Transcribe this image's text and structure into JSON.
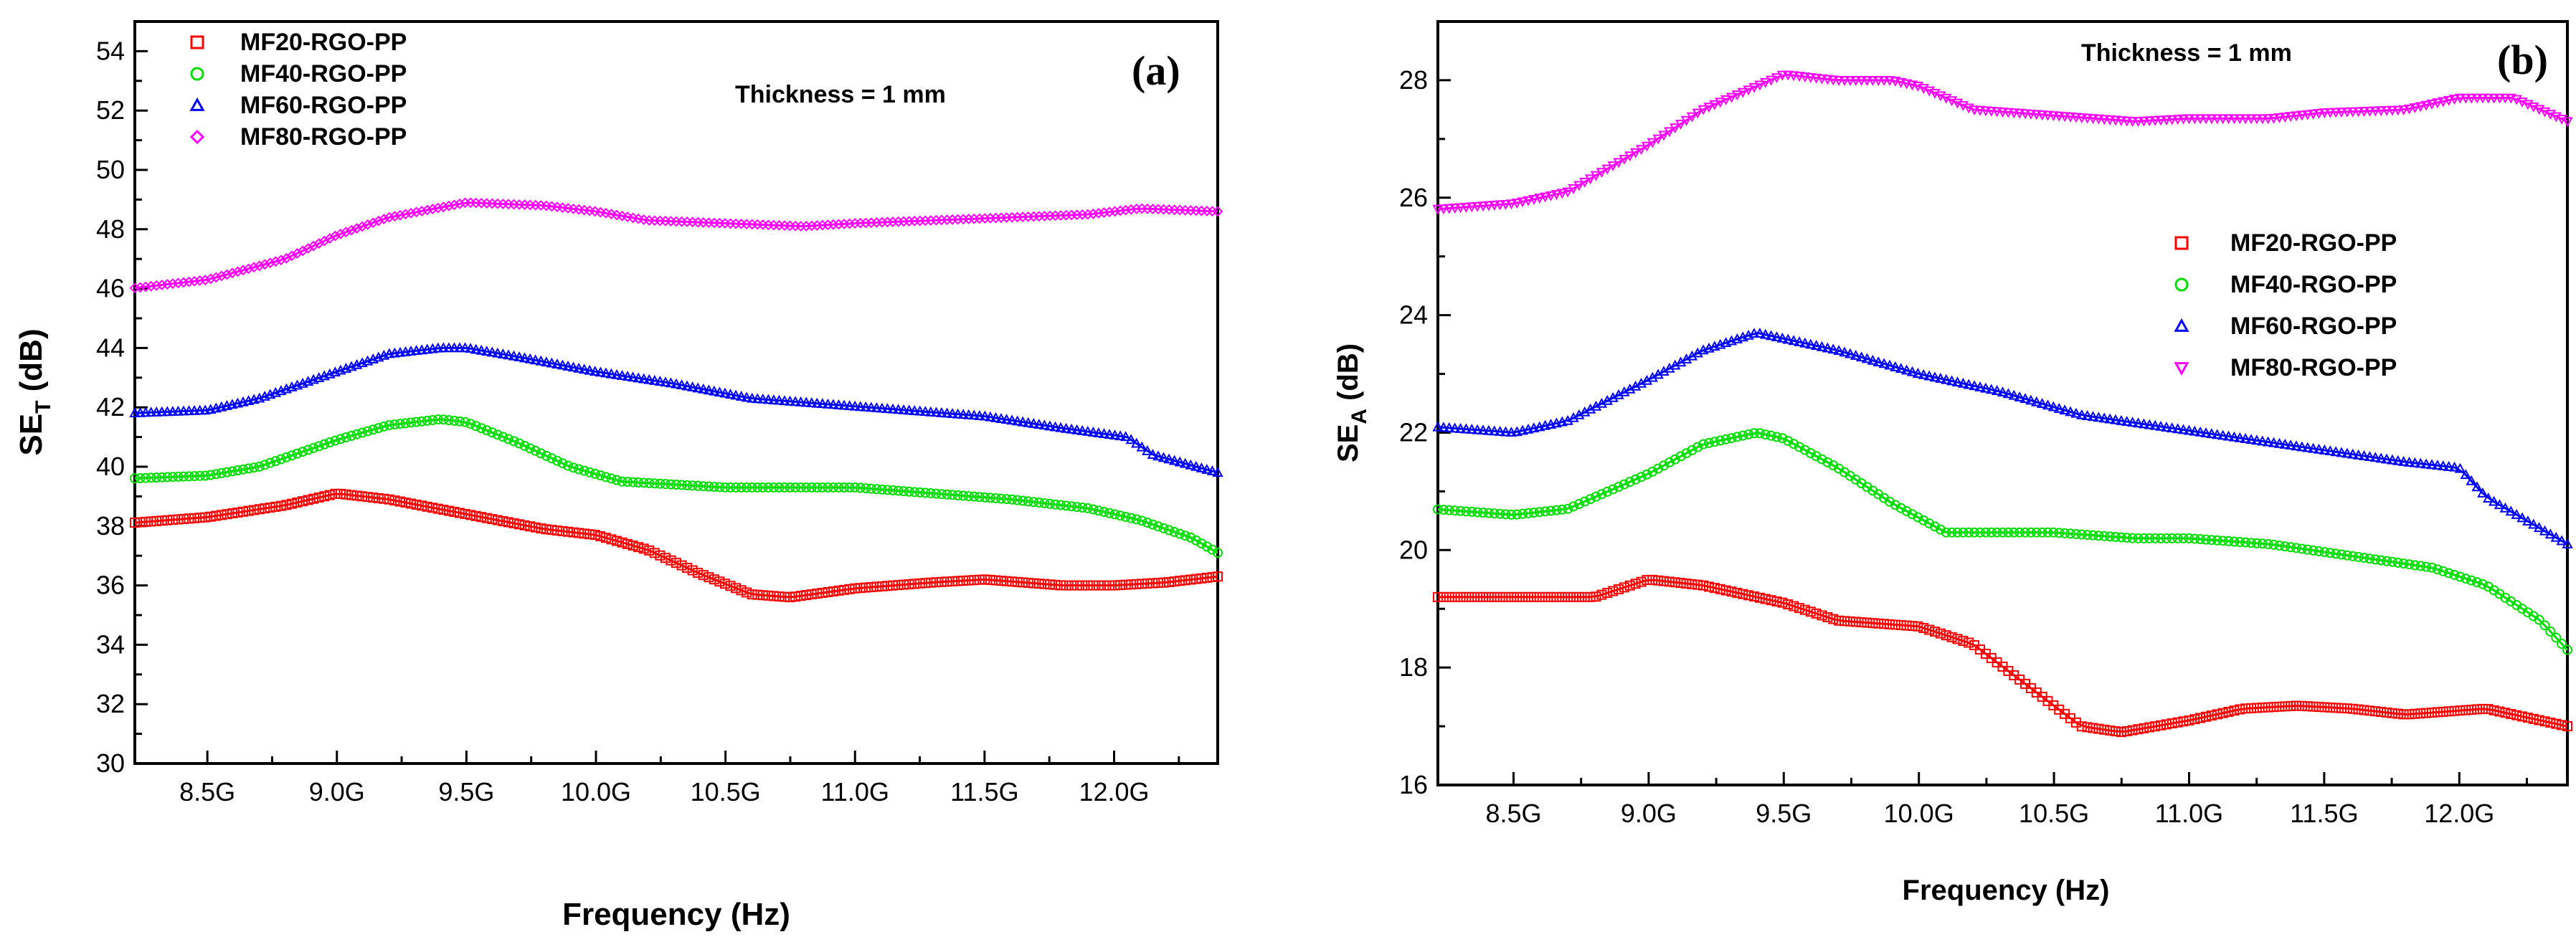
{
  "chart_data": [
    {
      "type": "line",
      "panel_label": "(a)",
      "annotation": "Thickness = 1 mm",
      "xlabel": "Frequency (Hz)",
      "ylabel": "SE",
      "ylabel_sub": "T",
      "ylabel_unit": " (dB)",
      "xlim": [
        8.22,
        12.4
      ],
      "ylim": [
        30,
        55
      ],
      "x_ticks": [
        8.5,
        9.0,
        9.5,
        10.0,
        10.5,
        11.0,
        11.5,
        12.0
      ],
      "x_tick_labels": [
        "8.5G",
        "9.0G",
        "9.5G",
        "10.0G",
        "10.5G",
        "11.0G",
        "11.5G",
        "12.0G"
      ],
      "y_ticks": [
        30,
        32,
        34,
        36,
        38,
        40,
        42,
        44,
        46,
        48,
        50,
        52,
        54
      ],
      "y_tick_labels": [
        "30",
        "32",
        "34",
        "36",
        "38",
        "40",
        "42",
        "44",
        "46",
        "48",
        "50",
        "52",
        "54"
      ],
      "legend_position": "top-left",
      "series": [
        {
          "name": "MF20-RGO-PP",
          "color": "#ff0000",
          "marker": "square",
          "x": [
            8.2,
            8.5,
            8.8,
            9.0,
            9.2,
            9.5,
            9.8,
            10.0,
            10.2,
            10.4,
            10.6,
            10.75,
            11.0,
            11.3,
            11.5,
            11.8,
            12.0,
            12.2,
            12.4
          ],
          "y": [
            38.1,
            38.3,
            38.7,
            39.1,
            38.9,
            38.4,
            37.9,
            37.7,
            37.2,
            36.4,
            35.7,
            35.6,
            35.9,
            36.1,
            36.2,
            36.0,
            36.0,
            36.1,
            36.3
          ]
        },
        {
          "name": "MF40-RGO-PP",
          "color": "#00dd00",
          "marker": "circle",
          "x": [
            8.2,
            8.5,
            8.7,
            9.0,
            9.2,
            9.4,
            9.5,
            9.7,
            9.9,
            10.1,
            10.3,
            10.5,
            10.8,
            11.0,
            11.3,
            11.6,
            11.9,
            12.1,
            12.3,
            12.4
          ],
          "y": [
            39.6,
            39.7,
            40.0,
            40.9,
            41.4,
            41.6,
            41.5,
            40.8,
            40.0,
            39.5,
            39.4,
            39.3,
            39.3,
            39.3,
            39.1,
            38.9,
            38.6,
            38.2,
            37.6,
            37.1
          ]
        },
        {
          "name": "MF60-RGO-PP",
          "color": "#0000ff",
          "marker": "triangle",
          "x": [
            8.2,
            8.5,
            8.7,
            9.0,
            9.2,
            9.4,
            9.5,
            9.7,
            10.0,
            10.3,
            10.6,
            10.9,
            11.2,
            11.5,
            11.8,
            12.05,
            12.15,
            12.4
          ],
          "y": [
            41.8,
            41.9,
            42.3,
            43.2,
            43.8,
            44.0,
            44.0,
            43.7,
            43.2,
            42.8,
            42.3,
            42.1,
            41.9,
            41.7,
            41.3,
            41.0,
            40.4,
            39.8
          ]
        },
        {
          "name": "MF80-RGO-PP",
          "color": "#ff00ff",
          "marker": "diamond",
          "x": [
            8.2,
            8.5,
            8.8,
            9.0,
            9.2,
            9.5,
            9.8,
            10.0,
            10.2,
            10.5,
            10.8,
            11.0,
            11.3,
            11.6,
            11.9,
            12.1,
            12.4
          ],
          "y": [
            46.0,
            46.3,
            47.0,
            47.8,
            48.4,
            48.9,
            48.8,
            48.6,
            48.3,
            48.2,
            48.1,
            48.2,
            48.3,
            48.4,
            48.5,
            48.7,
            48.6
          ]
        }
      ]
    },
    {
      "type": "line",
      "panel_label": "(b)",
      "annotation": "Thickness = 1 mm",
      "xlabel": "Frequency (Hz)",
      "ylabel": "SE",
      "ylabel_sub": "A",
      "ylabel_unit": " (dB)",
      "xlim": [
        8.22,
        12.4
      ],
      "ylim": [
        16,
        29
      ],
      "x_ticks": [
        8.5,
        9.0,
        9.5,
        10.0,
        10.5,
        11.0,
        11.5,
        12.0
      ],
      "x_tick_labels": [
        "8.5G",
        "9.0G",
        "9.5G",
        "10.0G",
        "10.5G",
        "11.0G",
        "11.5G",
        "12.0G"
      ],
      "y_ticks": [
        16,
        18,
        20,
        22,
        24,
        26,
        28
      ],
      "y_tick_labels": [
        "16",
        "18",
        "20",
        "22",
        "24",
        "26",
        "28"
      ],
      "legend_position": "center-right",
      "series": [
        {
          "name": "MF20-RGO-PP",
          "color": "#ff0000",
          "marker": "square",
          "x": [
            8.2,
            8.5,
            8.8,
            9.0,
            9.2,
            9.5,
            9.7,
            10.0,
            10.2,
            10.4,
            10.6,
            10.75,
            11.0,
            11.2,
            11.4,
            11.6,
            11.8,
            12.1,
            12.4
          ],
          "y": [
            19.2,
            19.2,
            19.2,
            19.5,
            19.4,
            19.1,
            18.8,
            18.7,
            18.4,
            17.7,
            17.0,
            16.9,
            17.1,
            17.3,
            17.35,
            17.3,
            17.2,
            17.3,
            17.0
          ]
        },
        {
          "name": "MF40-RGO-PP",
          "color": "#00dd00",
          "marker": "circle",
          "x": [
            8.2,
            8.5,
            8.7,
            9.0,
            9.2,
            9.4,
            9.5,
            9.7,
            9.9,
            10.1,
            10.3,
            10.5,
            10.8,
            11.0,
            11.3,
            11.6,
            11.9,
            12.1,
            12.3,
            12.4
          ],
          "y": [
            20.7,
            20.6,
            20.7,
            21.3,
            21.8,
            22.0,
            21.9,
            21.4,
            20.8,
            20.3,
            20.3,
            20.3,
            20.2,
            20.2,
            20.1,
            19.9,
            19.7,
            19.4,
            18.8,
            18.3
          ]
        },
        {
          "name": "MF60-RGO-PP",
          "color": "#0000ff",
          "marker": "triangle",
          "x": [
            8.2,
            8.5,
            8.7,
            9.0,
            9.2,
            9.4,
            9.5,
            9.7,
            10.0,
            10.3,
            10.6,
            10.9,
            11.2,
            11.5,
            11.8,
            12.0,
            12.1,
            12.4
          ],
          "y": [
            22.1,
            22.0,
            22.2,
            22.9,
            23.4,
            23.7,
            23.6,
            23.4,
            23.0,
            22.7,
            22.3,
            22.1,
            21.9,
            21.7,
            21.5,
            21.4,
            20.9,
            20.1
          ]
        },
        {
          "name": "MF80-RGO-PP",
          "color": "#ff00ff",
          "marker": "inverted-triangle",
          "x": [
            8.2,
            8.5,
            8.7,
            9.0,
            9.2,
            9.4,
            9.5,
            9.7,
            9.9,
            10.0,
            10.2,
            10.5,
            10.8,
            11.0,
            11.3,
            11.5,
            11.8,
            12.0,
            12.2,
            12.4
          ],
          "y": [
            25.8,
            25.9,
            26.1,
            26.9,
            27.5,
            27.9,
            28.1,
            28.0,
            28.0,
            27.9,
            27.5,
            27.4,
            27.3,
            27.35,
            27.35,
            27.45,
            27.5,
            27.7,
            27.7,
            27.3
          ]
        }
      ]
    }
  ]
}
